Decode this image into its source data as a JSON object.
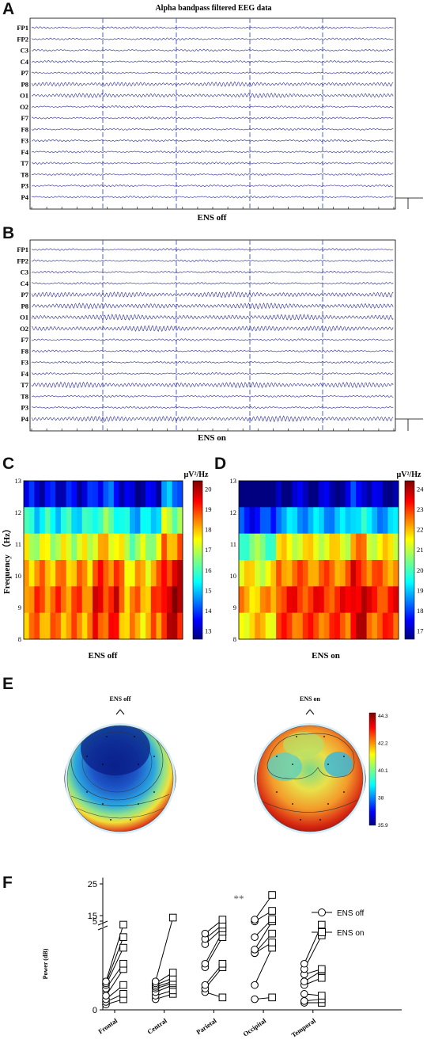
{
  "panels": {
    "A": "A",
    "B": "B",
    "C": "C",
    "D": "D",
    "E": "E",
    "F": "F"
  },
  "eeg_title": "Alpha bandpass filtered EEG data",
  "channels": [
    "FP1",
    "FP2",
    "C3",
    "C4",
    "P7",
    "P8",
    "O1",
    "O2",
    "F7",
    "F8",
    "F3",
    "F4",
    "T7",
    "T8",
    "P3",
    "P4"
  ],
  "eeg_off_label": "ENS off",
  "eeg_on_label": "ENS on",
  "spectrogram": {
    "ylabel": "Frequency （Hz）",
    "yticks": [
      "8",
      "9",
      "10",
      "11",
      "12",
      "13"
    ],
    "unit": "µV²/Hz",
    "off": {
      "xlabel": "ENS off",
      "colorbar_ticks": [
        "13",
        "14",
        "15",
        "16",
        "17",
        "18",
        "19",
        "20"
      ]
    },
    "on": {
      "xlabel": "ENS on",
      "colorbar_ticks": [
        "17",
        "18",
        "19",
        "20",
        "21",
        "22",
        "23",
        "24"
      ]
    }
  },
  "topo": {
    "off_title": "ENS off",
    "on_title": "ENS on",
    "colorbar_ticks": [
      "44.3",
      "42.2",
      "40.1",
      "38",
      "35.9"
    ]
  },
  "colors": {
    "eeg_trace": "#2a2a9a",
    "cursor": "#3a4fd0",
    "marker": "#000000"
  },
  "chart_data": {
    "type": "scatter",
    "ylabel": "Power (dB)",
    "categories": [
      "Frontal",
      "Central",
      "Parietal",
      "Occipital",
      "Temporal"
    ],
    "ylim_lower": [
      0,
      5
    ],
    "ylim_upper": [
      15,
      25
    ],
    "yticks_lower": [
      "0",
      "5"
    ],
    "yticks_upper": [
      "15",
      "25"
    ],
    "series": [
      {
        "name": "ENS off",
        "marker": "circle",
        "values": [
          [
            0.3,
            0.45,
            0.6,
            0.8,
            1.2,
            1.4,
            1.5,
            1.6
          ],
          [
            0.6,
            0.8,
            1.0,
            1.2,
            1.3,
            1.4,
            1.5,
            1.6
          ],
          [
            1.0,
            1.2,
            1.4,
            2.4,
            2.6,
            3.7,
            4.0,
            4.3
          ],
          [
            0.6,
            1.4,
            3.2,
            3.2,
            3.4,
            4.1,
            13.5,
            14.5
          ],
          [
            0.4,
            0.5,
            0.9,
            1.4,
            1.6,
            2.0,
            2.3,
            2.6
          ]
        ]
      },
      {
        "name": "ENS on",
        "marker": "square",
        "values": [
          [
            0.6,
            0.9,
            1.4,
            2.3,
            2.6,
            3.5,
            4.1,
            4.8
          ],
          [
            0.9,
            1.1,
            1.4,
            1.5,
            1.6,
            1.8,
            2.1,
            5.2
          ],
          [
            0.7,
            2.4,
            2.6,
            4.1,
            4.4,
            4.6,
            4.8,
            14.5
          ],
          [
            0.7,
            3.5,
            3.8,
            4.3,
            13.5,
            14.8,
            16.5,
            21.5
          ],
          [
            0.4,
            0.6,
            0.8,
            1.8,
            2.2,
            2.3,
            4.2,
            4.8
          ]
        ]
      }
    ],
    "annotation": "**",
    "legend": [
      "ENS off",
      "ENS on"
    ]
  }
}
